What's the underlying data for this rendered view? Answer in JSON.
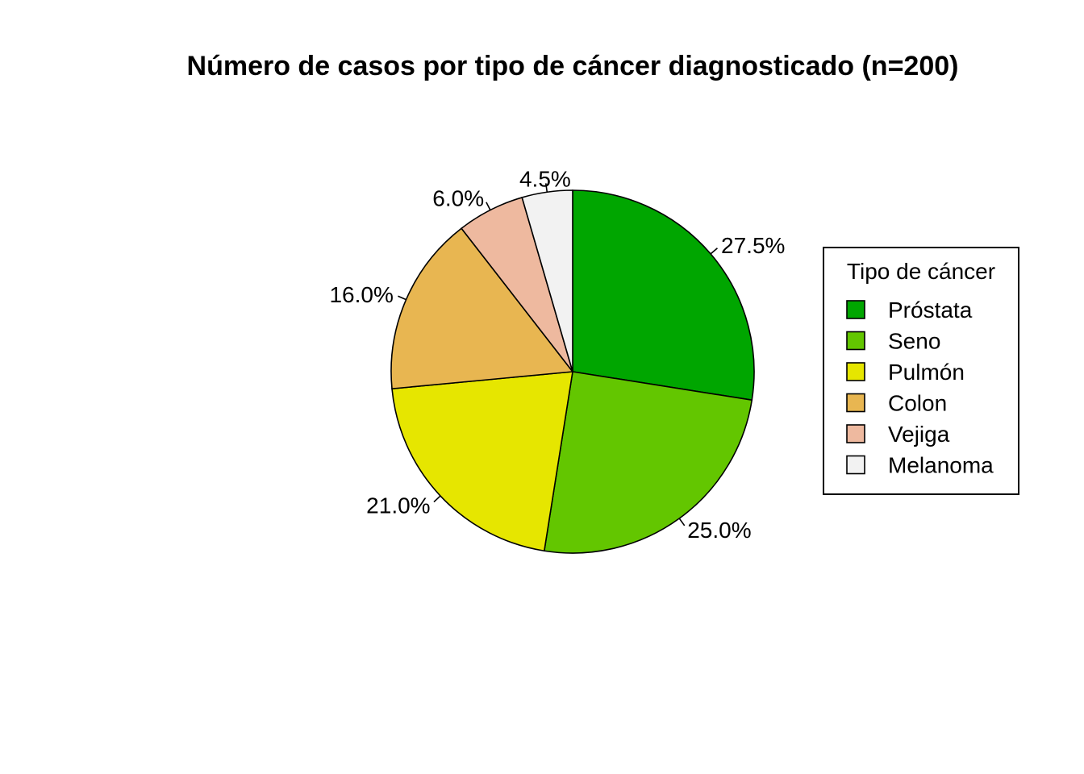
{
  "chart_data": {
    "type": "pie",
    "title": "Número de casos por tipo de cáncer diagnosticado (n=200)",
    "total": 200,
    "categories": [
      "Próstata",
      "Seno",
      "Pulmón",
      "Colon",
      "Vejiga",
      "Melanoma"
    ],
    "values": [
      55,
      50,
      42,
      32,
      12,
      9
    ],
    "percent_labels": [
      "27.5%",
      "25.0%",
      "21.0%",
      "16.0%",
      "6.0%",
      "4.5%"
    ],
    "colors": [
      "#00A600",
      "#63C600",
      "#E6E600",
      "#E8B651",
      "#EEB99F",
      "#F2F2F2"
    ],
    "direction": "clockwise",
    "start": "top",
    "legend": {
      "title": "Tipo de cáncer",
      "placement": "right"
    }
  }
}
